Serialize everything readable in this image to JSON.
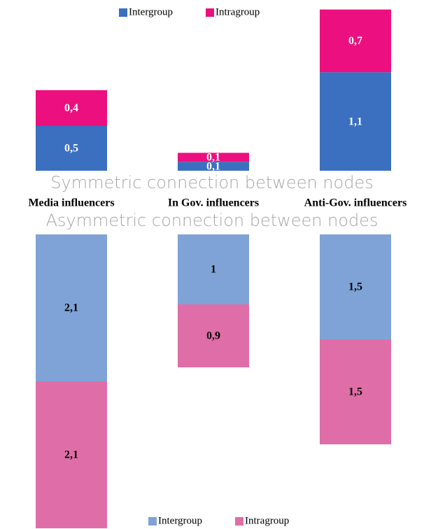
{
  "chart_data": [
    {
      "type": "bar",
      "stacked": true,
      "title": "Symmetric connection between nodes",
      "categories": [
        "Media influencers",
        "In Gov. influencers",
        "Anti-Gov. influencers"
      ],
      "series": [
        {
          "name": "Intergroup",
          "color": "#3a70bf",
          "values": [
            0.5,
            0.1,
            1.1
          ],
          "value_labels": [
            "0,5",
            "0,1",
            "1,1"
          ]
        },
        {
          "name": "Intragroup",
          "color": "#ec0f7f",
          "values": [
            0.4,
            0.1,
            0.7
          ],
          "value_labels": [
            "0,4",
            "0,1",
            "0,7"
          ]
        }
      ]
    },
    {
      "type": "bar",
      "stacked": true,
      "title": "Asymmetric connection between nodes",
      "series": [
        {
          "name": "Intergroup",
          "color": "#7fa3d6",
          "values": [
            2.1,
            1,
            1.5
          ],
          "value_labels": [
            "2,1",
            "1",
            "1,5"
          ]
        },
        {
          "name": "Intragroup",
          "color": "#df6ea8",
          "values": [
            2.1,
            0.9,
            1.5
          ],
          "value_labels": [
            "2,1",
            "0,9",
            "1,5"
          ]
        }
      ]
    }
  ]
}
